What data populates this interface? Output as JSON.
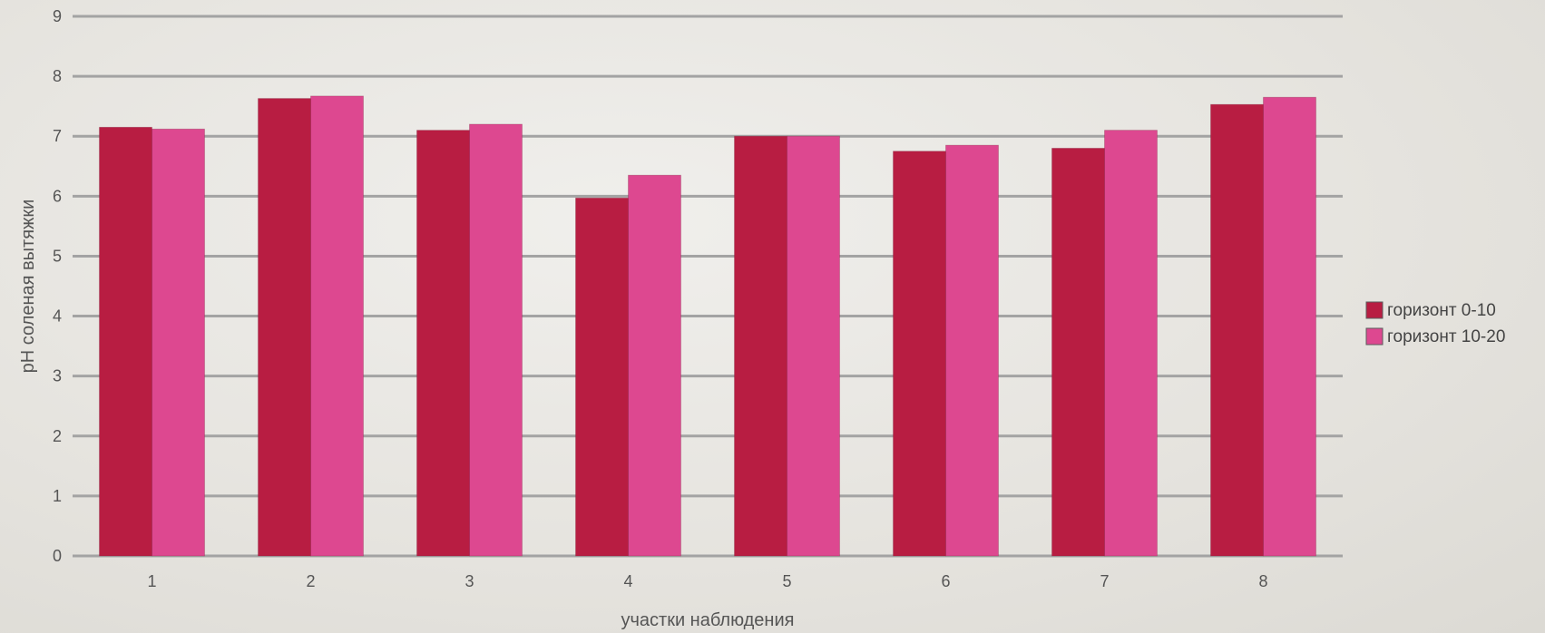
{
  "chart_data": {
    "type": "bar",
    "categories": [
      "1",
      "2",
      "3",
      "4",
      "5",
      "6",
      "7",
      "8"
    ],
    "series": [
      {
        "name": "горизонт 0-10",
        "color": "#b81d42",
        "values": [
          7.15,
          7.63,
          7.1,
          5.97,
          7.0,
          6.75,
          6.8,
          7.53
        ]
      },
      {
        "name": "горизонт 10-20",
        "color": "#dd4890",
        "values": [
          7.12,
          7.67,
          7.2,
          6.35,
          7.0,
          6.85,
          7.1,
          7.65
        ]
      }
    ],
    "title": "",
    "xlabel": "участки наблюдения",
    "ylabel": "pH соленая вытяжки",
    "ylim": [
      0,
      9
    ],
    "yticks": [
      0,
      1,
      2,
      3,
      4,
      5,
      6,
      7,
      8,
      9
    ],
    "grid": true,
    "legend_position": "right"
  }
}
